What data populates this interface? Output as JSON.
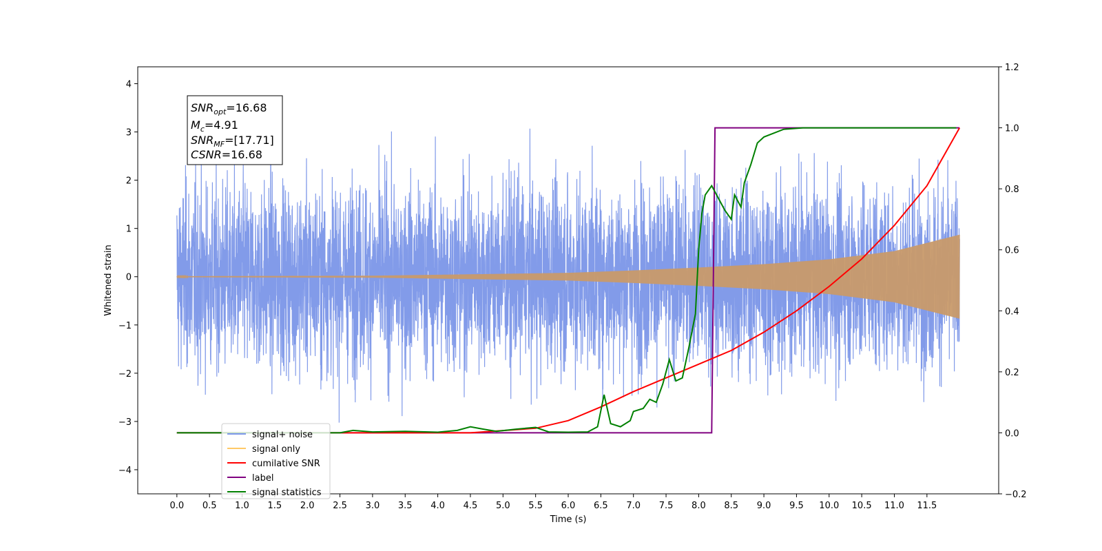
{
  "chart_data": {
    "type": "line",
    "xlabel": "Time (s)",
    "ylabel": "Whitened strain",
    "xlim": [
      -0.6,
      12.6
    ],
    "ylim": [
      -4.5,
      4.35
    ],
    "y2lim": [
      -0.2,
      1.2
    ],
    "x_ticks": [
      "0.0",
      "0.5",
      "1.0",
      "1.5",
      "2.0",
      "2.5",
      "3.0",
      "3.5",
      "4.0",
      "4.5",
      "5.0",
      "5.5",
      "6.0",
      "6.5",
      "7.0",
      "7.5",
      "8.0",
      "8.5",
      "9.0",
      "9.5",
      "10.0",
      "10.5",
      "11.0",
      "11.5"
    ],
    "y_ticks": [
      "4",
      "3",
      "2",
      "1",
      "0",
      "−1",
      "−2",
      "−3",
      "−4"
    ],
    "y2_ticks": [
      "1.2",
      "1.0",
      "0.8",
      "0.6",
      "0.4",
      "0.2",
      "0.0",
      "−0.2"
    ],
    "signal_envelope": {
      "t": [
        0,
        3,
        6,
        7,
        8,
        9,
        10,
        11,
        12
      ],
      "amp": [
        0.01,
        0.02,
        0.08,
        0.13,
        0.19,
        0.26,
        0.36,
        0.53,
        0.87
      ]
    },
    "cumulative_snr": {
      "x": [
        0,
        4.5,
        5.5,
        6.0,
        6.5,
        7.0,
        7.5,
        8.0,
        8.5,
        9.0,
        9.5,
        10.0,
        10.5,
        11.0,
        11.5,
        12.0
      ],
      "y": [
        0,
        0,
        0.015,
        0.04,
        0.085,
        0.135,
        0.18,
        0.225,
        0.27,
        0.33,
        0.4,
        0.48,
        0.57,
        0.68,
        0.81,
        1.0
      ]
    },
    "label": {
      "x": [
        0,
        8.2,
        8.25,
        12.0
      ],
      "y": [
        0,
        0,
        1.0,
        1.0
      ]
    },
    "signal_statistics": {
      "x": [
        0,
        2.5,
        2.7,
        3.0,
        3.5,
        4.0,
        4.3,
        4.5,
        4.7,
        4.9,
        5.2,
        5.5,
        5.7,
        6.0,
        6.3,
        6.45,
        6.55,
        6.65,
        6.8,
        6.95,
        7.0,
        7.15,
        7.25,
        7.35,
        7.45,
        7.55,
        7.65,
        7.75,
        7.85,
        7.95,
        8.0,
        8.05,
        8.1,
        8.2,
        8.3,
        8.4,
        8.5,
        8.55,
        8.65,
        8.7,
        8.8,
        8.9,
        9.0,
        9.3,
        9.6,
        10.0,
        11.0,
        11.95
      ],
      "y": [
        0,
        0,
        0.008,
        0.003,
        0.005,
        0.002,
        0.008,
        0.02,
        0.012,
        0.005,
        0.012,
        0.018,
        0.003,
        0.002,
        0.003,
        0.02,
        0.125,
        0.03,
        0.02,
        0.04,
        0.07,
        0.08,
        0.11,
        0.1,
        0.16,
        0.24,
        0.17,
        0.18,
        0.28,
        0.39,
        0.6,
        0.72,
        0.78,
        0.81,
        0.77,
        0.73,
        0.7,
        0.78,
        0.74,
        0.82,
        0.88,
        0.95,
        0.97,
        0.995,
        1.0,
        1.0,
        1.0,
        1.0
      ]
    },
    "legend": {
      "placement": "lower-left",
      "entries": [
        {
          "label": "signal+ noise",
          "color": "#7b96e8"
        },
        {
          "label": "signal only",
          "color": "#ffc966"
        },
        {
          "label": "cumilative SNR",
          "color": "#ff0000"
        },
        {
          "label": "label",
          "color": "#800080"
        },
        {
          "label": "signal statistics",
          "color": "#008000"
        }
      ]
    },
    "stats": {
      "snr_opt": "16.68",
      "mc": "4.91",
      "snr_mf": "[17.71]",
      "csnr": "16.68"
    },
    "colors": {
      "noise": "#7b96e8",
      "signal": "#c89a6a",
      "cumulative_snr": "#ff0000",
      "label": "#800080",
      "statistics": "#008000"
    }
  }
}
